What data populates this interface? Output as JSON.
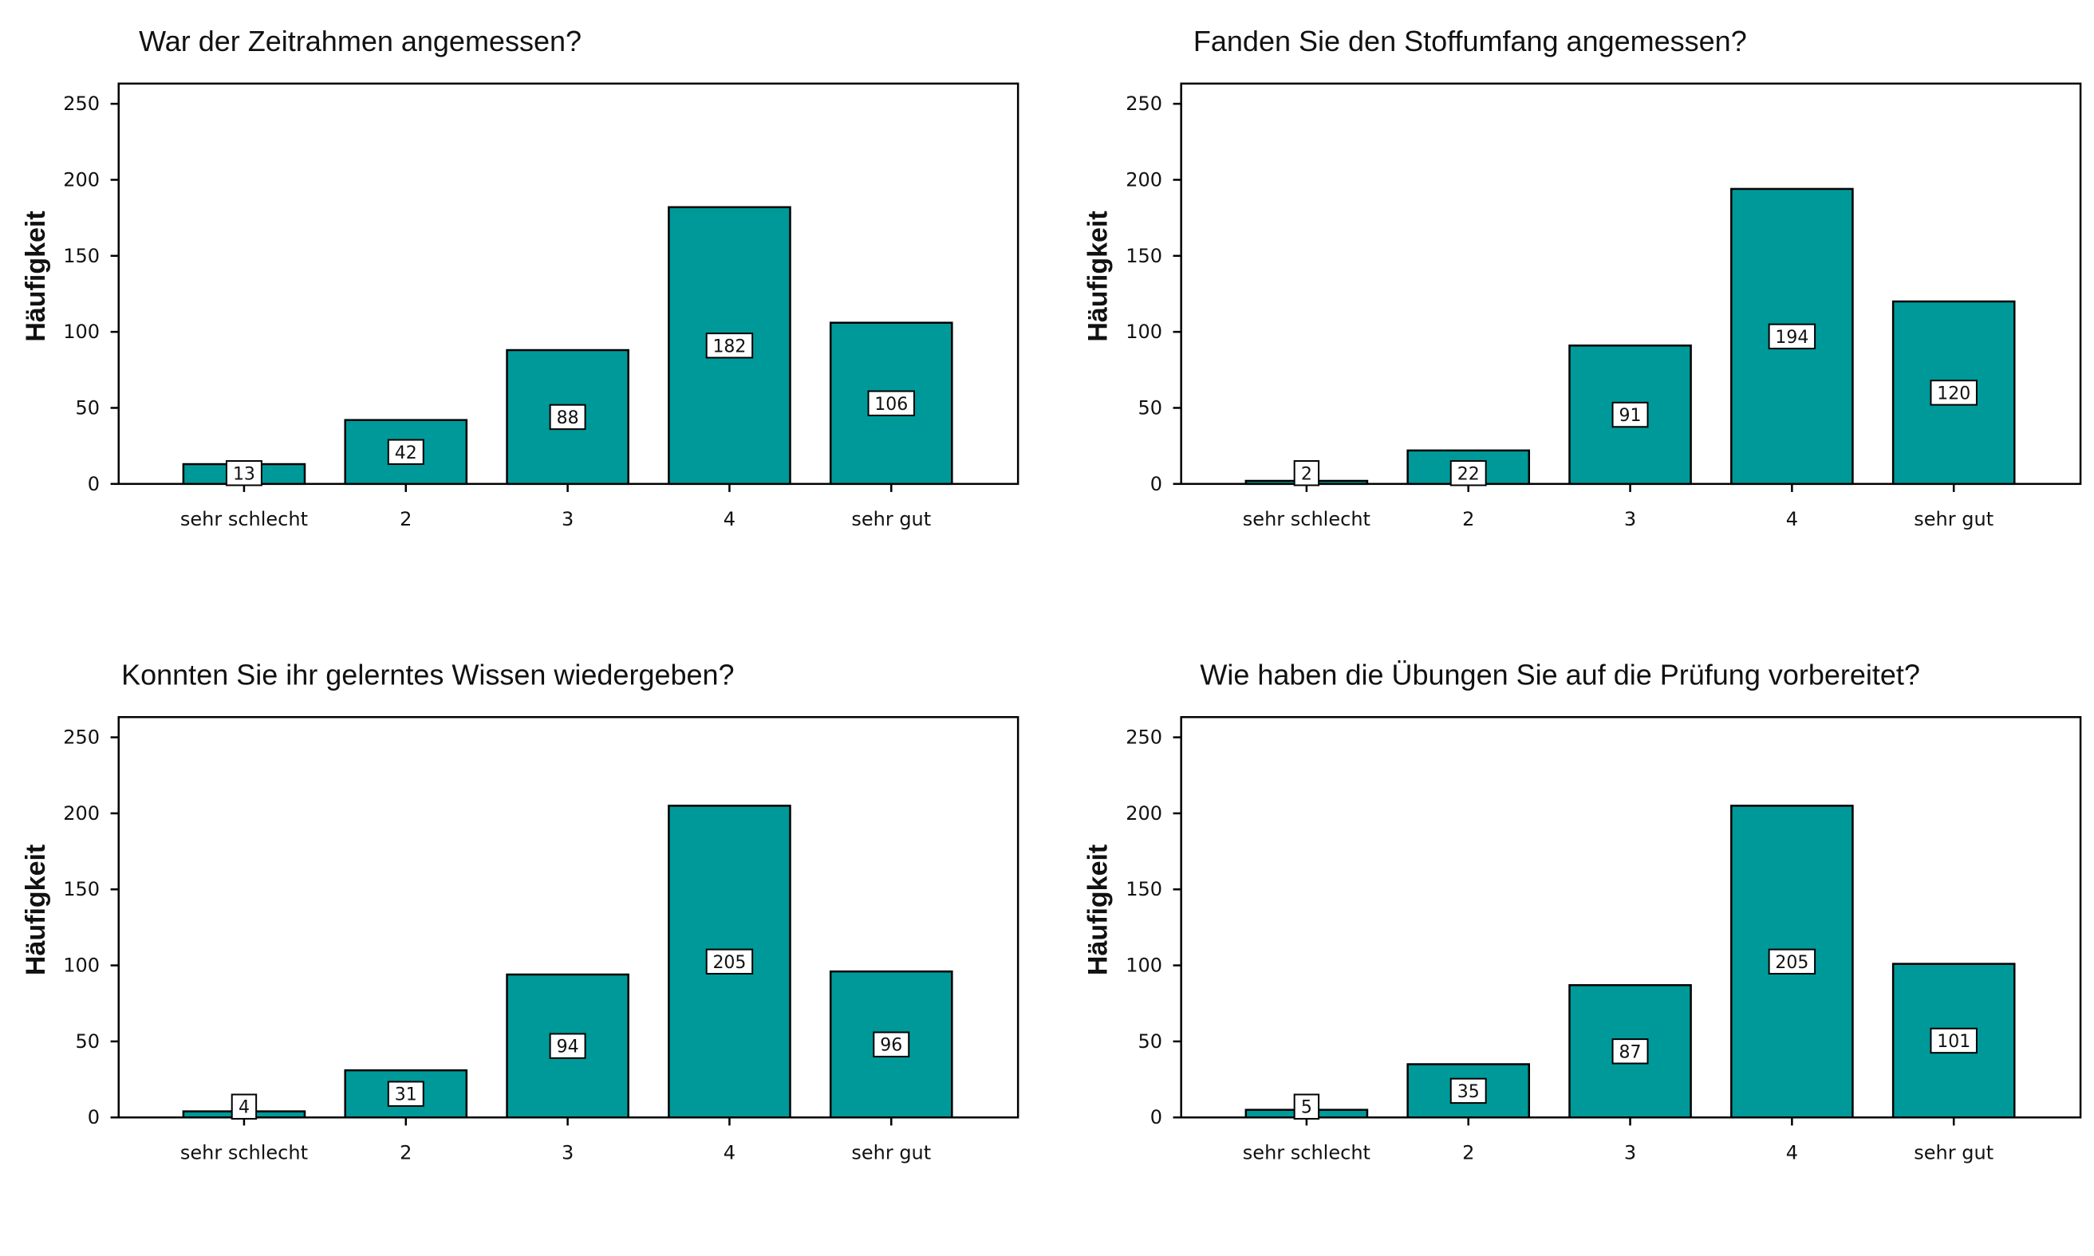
{
  "chart_data": [
    {
      "type": "bar",
      "title": "War der Zeitrahmen angemessen?",
      "ylabel": "Häufigkeit",
      "xlabel": "",
      "categories": [
        "sehr schlecht",
        "2",
        "3",
        "4",
        "sehr gut"
      ],
      "values": [
        13,
        42,
        88,
        182,
        106
      ],
      "ylim": [
        0,
        250
      ],
      "yticks": [
        0,
        50,
        100,
        150,
        200,
        250
      ],
      "grid": false,
      "bar_color": "#009999"
    },
    {
      "type": "bar",
      "title": "Fanden Sie den Stoffumfang angemessen?",
      "ylabel": "Häufigkeit",
      "xlabel": "",
      "categories": [
        "sehr schlecht",
        "2",
        "3",
        "4",
        "sehr gut"
      ],
      "values": [
        2,
        22,
        91,
        194,
        120
      ],
      "ylim": [
        0,
        250
      ],
      "yticks": [
        0,
        50,
        100,
        150,
        200,
        250
      ],
      "grid": false,
      "bar_color": "#009999"
    },
    {
      "type": "bar",
      "title": "Konnten Sie ihr gelerntes Wissen wiedergeben?",
      "ylabel": "Häufigkeit",
      "xlabel": "",
      "categories": [
        "sehr schlecht",
        "2",
        "3",
        "4",
        "sehr gut"
      ],
      "values": [
        4,
        31,
        94,
        205,
        96
      ],
      "ylim": [
        0,
        250
      ],
      "yticks": [
        0,
        50,
        100,
        150,
        200,
        250
      ],
      "grid": false,
      "bar_color": "#009999"
    },
    {
      "type": "bar",
      "title": "Wie haben die Übungen Sie auf die Prüfung vorbereitet?",
      "ylabel": "Häufigkeit",
      "xlabel": "",
      "categories": [
        "sehr schlecht",
        "2",
        "3",
        "4",
        "sehr gut"
      ],
      "values": [
        5,
        35,
        87,
        205,
        101
      ],
      "ylim": [
        0,
        250
      ],
      "yticks": [
        0,
        50,
        100,
        150,
        200,
        250
      ],
      "grid": false,
      "bar_color": "#009999"
    }
  ]
}
